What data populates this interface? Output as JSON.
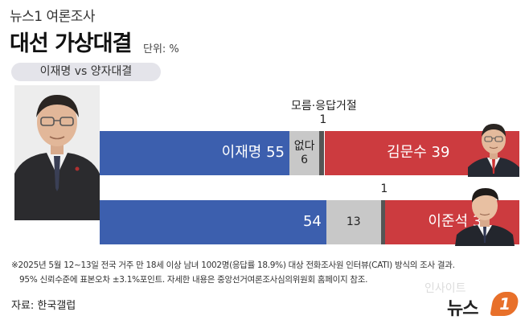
{
  "header": {
    "brand_line": "뉴스1 여론조사",
    "title": "대선 가상대결",
    "unit": "단위: %",
    "matchup_label": "이재명 vs 양자대결"
  },
  "annotations": {
    "undecided_header": "모름·응답거절"
  },
  "chart_data": {
    "type": "bar",
    "orientation": "horizontal",
    "stacked": true,
    "rows": [
      {
        "segments": [
          {
            "label": "이재명",
            "value": 55,
            "color": "#3c5fae"
          },
          {
            "label": "없다",
            "value": 6,
            "color": "#c8c8c8"
          },
          {
            "label": "",
            "value": 1,
            "color": "#555555"
          },
          {
            "label": "김문수",
            "value": 39,
            "color": "#cc3b3f"
          }
        ]
      },
      {
        "segments": [
          {
            "label": "",
            "value": 54,
            "color": "#3c5fae"
          },
          {
            "label": "",
            "value": 13,
            "color": "#c8c8c8"
          },
          {
            "label": "",
            "value": 1,
            "color": "#555555"
          },
          {
            "label": "이준석",
            "value": 32,
            "color": "#cc3b3f"
          }
        ]
      }
    ]
  },
  "footnotes": {
    "line1": "※2025년 5월 12~13일 전국 거주 만 18세 이상 남녀 1002명(응답률 18.9%) 대상 전화조사원 인터뷰(CATI) 방식의 조사 결과.",
    "line2": "95% 신뢰수준에 표본오차 ±3.1%포인트. 자세한 내용은 중앙선거여론조사심의위원회 홈페이지 참조."
  },
  "source": "자료: 한국갤럽",
  "logo": {
    "text": "뉴스",
    "mark": "1"
  },
  "watermark": "인사이트"
}
